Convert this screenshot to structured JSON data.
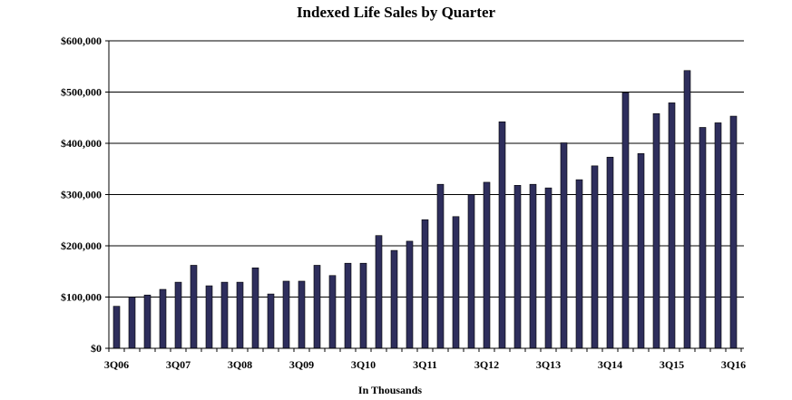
{
  "chart_data": {
    "type": "bar",
    "title": "Indexed Life Sales by Quarter",
    "xlabel": "In Thousands",
    "ylabel": "",
    "ylim": [
      0,
      600000
    ],
    "yticks": [
      0,
      100000,
      200000,
      300000,
      400000,
      500000,
      600000
    ],
    "ytick_labels": [
      "$0",
      "$100,000",
      "$200,000",
      "$300,000",
      "$400,000",
      "$500,000",
      "$600,000"
    ],
    "xtick_labels": [
      {
        "label": "3Q06",
        "index": 0
      },
      {
        "label": "3Q07",
        "index": 4
      },
      {
        "label": "3Q08",
        "index": 8
      },
      {
        "label": "3Q09",
        "index": 12
      },
      {
        "label": "3Q10",
        "index": 16
      },
      {
        "label": "3Q11",
        "index": 20
      },
      {
        "label": "3Q12",
        "index": 24
      },
      {
        "label": "3Q13",
        "index": 28
      },
      {
        "label": "3Q14",
        "index": 32
      },
      {
        "label": "3Q15",
        "index": 36
      },
      {
        "label": "3Q16",
        "index": 40
      }
    ],
    "grid": true,
    "bar_color": "#2e2e5c",
    "values": [
      82000,
      100000,
      104000,
      115000,
      129000,
      162000,
      122000,
      129000,
      129000,
      157000,
      106000,
      131000,
      131000,
      162000,
      142000,
      166000,
      166000,
      220000,
      191000,
      209000,
      251000,
      320000,
      257000,
      300000,
      324000,
      442000,
      318000,
      320000,
      313000,
      401000,
      329000,
      356000,
      373000,
      499000,
      380000,
      458000,
      479000,
      542000,
      431000,
      440000,
      453000
    ]
  }
}
